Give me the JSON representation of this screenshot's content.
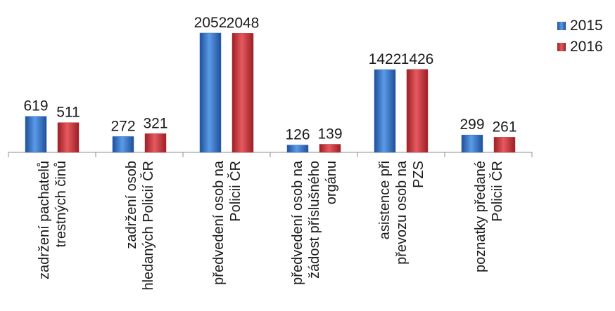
{
  "chart_data": {
    "type": "bar",
    "categories": [
      [
        "zadržení pachatelů",
        "trestných činů"
      ],
      [
        "zadržení osob",
        "hledaných Policií ČR"
      ],
      [
        "předvedení osob na",
        "Policii ČR"
      ],
      [
        "předvedení osob na",
        "žádost příslušného",
        "orgánu"
      ],
      [
        "asistence při",
        "převozu osob na",
        "PZS"
      ],
      [
        "poznatky předané",
        "Policii ČR"
      ]
    ],
    "series": [
      {
        "name": "2015",
        "values": [
          619,
          272,
          2052,
          126,
          1422,
          299
        ],
        "color": "#2f6fc0"
      },
      {
        "name": "2016",
        "values": [
          511,
          321,
          2048,
          139,
          1426,
          261
        ],
        "color": "#c8323a"
      }
    ],
    "ylim": [
      0,
      2052
    ],
    "grid": false,
    "legend_position": "top-right",
    "title": "",
    "xlabel": "",
    "ylabel": ""
  }
}
